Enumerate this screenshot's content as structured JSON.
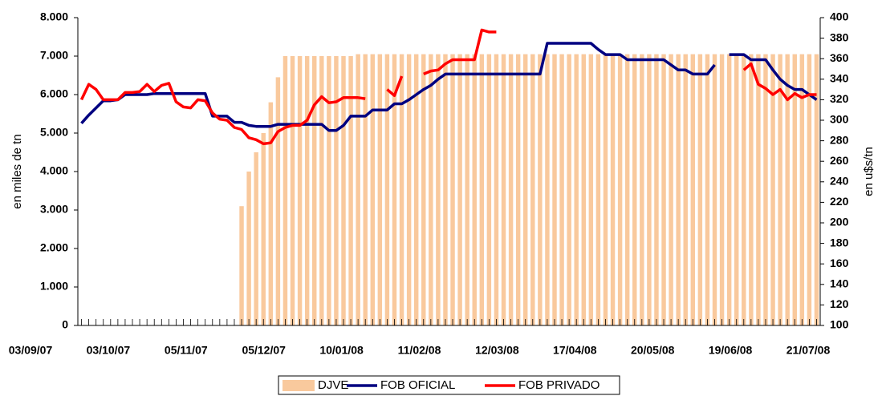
{
  "chart_data": {
    "type": "combo",
    "y_label": "en miles de tn",
    "y2_label": "en u$s/tn",
    "categories": [
      "03/09/07",
      null,
      null,
      null,
      null,
      null,
      null,
      null,
      null,
      null,
      "03/10/07",
      null,
      null,
      null,
      null,
      null,
      null,
      null,
      null,
      null,
      "05/11/07",
      null,
      null,
      null,
      null,
      null,
      null,
      null,
      null,
      null,
      "05/12/07",
      null,
      null,
      null,
      null,
      null,
      null,
      null,
      null,
      null,
      "10/01/08",
      null,
      null,
      null,
      null,
      null,
      null,
      null,
      null,
      null,
      "11/02/08",
      null,
      null,
      null,
      null,
      null,
      null,
      null,
      null,
      null,
      "12/03/08",
      null,
      null,
      null,
      null,
      null,
      null,
      null,
      null,
      null,
      "17/04/08",
      null,
      null,
      null,
      null,
      null,
      null,
      null,
      null,
      null,
      "20/05/08",
      null,
      null,
      null,
      null,
      null,
      null,
      null,
      null,
      null,
      "19/06/08",
      null,
      null,
      null,
      null,
      null,
      null,
      null,
      null,
      null,
      "21/07/08",
      null
    ],
    "series": [
      {
        "name": "DJVE",
        "type": "bar",
        "axis": "y",
        "color": "#f9c99d",
        "values": [
          0,
          0,
          0,
          0,
          0,
          0,
          0,
          0,
          0,
          0,
          0,
          0,
          0,
          0,
          0,
          0,
          0,
          0,
          0,
          0,
          0,
          0,
          3100,
          4000,
          4500,
          5000,
          5800,
          6450,
          7000,
          7000,
          7000,
          7000,
          7000,
          7000,
          7000,
          7000,
          7000,
          7000,
          7050,
          7050,
          7050,
          7050,
          7050,
          7050,
          7050,
          7050,
          7050,
          7050,
          7050,
          7050,
          7050,
          7050,
          7050,
          7050,
          7050,
          7050,
          7050,
          7050,
          7050,
          7050,
          7050,
          7050,
          7050,
          7050,
          7050,
          7050,
          7050,
          7050,
          7050,
          7050,
          7050,
          7050,
          7050,
          7050,
          7050,
          7050,
          7050,
          7050,
          7050,
          7050,
          7050,
          7050,
          7050,
          7050,
          7050,
          7050,
          7050,
          7050,
          7050,
          7050,
          7050,
          7050,
          7050,
          7050,
          7050,
          7050,
          7050,
          7050,
          7050,
          7050,
          7050,
          7050
        ]
      },
      {
        "name": "FOB OFICIAL",
        "type": "line",
        "axis": "y2",
        "color": "#000080",
        "values": [
          297,
          305,
          312,
          319,
          319,
          320,
          325,
          325,
          325,
          325,
          326,
          326,
          326,
          326,
          326,
          326,
          326,
          326,
          304,
          304,
          304,
          298,
          298,
          295,
          294,
          294,
          294,
          296,
          296,
          296,
          296,
          296,
          296,
          296,
          290,
          290,
          295,
          304,
          304,
          304,
          310,
          310,
          310,
          316,
          316,
          320,
          325,
          330,
          334,
          340,
          345,
          345,
          345,
          345,
          345,
          345,
          345,
          345,
          345,
          345,
          345,
          345,
          345,
          345,
          375,
          375,
          375,
          375,
          375,
          375,
          375,
          369,
          364,
          364,
          364,
          359,
          359,
          359,
          359,
          359,
          359,
          354,
          349,
          349,
          345,
          345,
          345,
          354,
          null,
          364,
          364,
          364,
          359,
          359,
          359,
          349,
          340,
          334,
          330,
          330,
          325,
          320
        ]
      },
      {
        "name": "FOB PRIVADO",
        "type": "line",
        "axis": "y2",
        "color": "#ff0000",
        "values": [
          320,
          335,
          330,
          320,
          320,
          320,
          327,
          327,
          328,
          335,
          328,
          334,
          336,
          318,
          313,
          312,
          320,
          319,
          307,
          301,
          300,
          293,
          291,
          283,
          281,
          277,
          278,
          289,
          293,
          295,
          295,
          300,
          315,
          323,
          317,
          318,
          322,
          322,
          322,
          321,
          null,
          null,
          330,
          324,
          343,
          null,
          null,
          345,
          348,
          349,
          355,
          359,
          359,
          359,
          359,
          388,
          386,
          386,
          null,
          null,
          null,
          null,
          null,
          null,
          null,
          null,
          null,
          null,
          null,
          null,
          null,
          null,
          null,
          null,
          null,
          null,
          null,
          null,
          null,
          null,
          null,
          null,
          null,
          null,
          null,
          null,
          null,
          null,
          null,
          null,
          null,
          349,
          355,
          335,
          331,
          325,
          330,
          320,
          326,
          322,
          325,
          325
        ]
      }
    ],
    "ylim": [
      0,
      8000
    ],
    "yticks": [
      0,
      {
        "value": 1000,
        "label": "1.000"
      },
      {
        "value": 2000,
        "label": "2.000"
      },
      {
        "value": 3000,
        "label": "3.000"
      },
      {
        "value": 4000,
        "label": "4.000"
      },
      {
        "value": 5000,
        "label": "5.000"
      },
      {
        "value": 6000,
        "label": "6.000"
      },
      {
        "value": 7000,
        "label": "7.000"
      },
      {
        "value": 8000,
        "label": "8.000"
      }
    ],
    "y2lim": [
      100,
      400
    ],
    "y2ticks": [
      100,
      120,
      140,
      160,
      180,
      200,
      220,
      240,
      260,
      280,
      300,
      320,
      340,
      360,
      380,
      400
    ],
    "legend": "bottom"
  }
}
